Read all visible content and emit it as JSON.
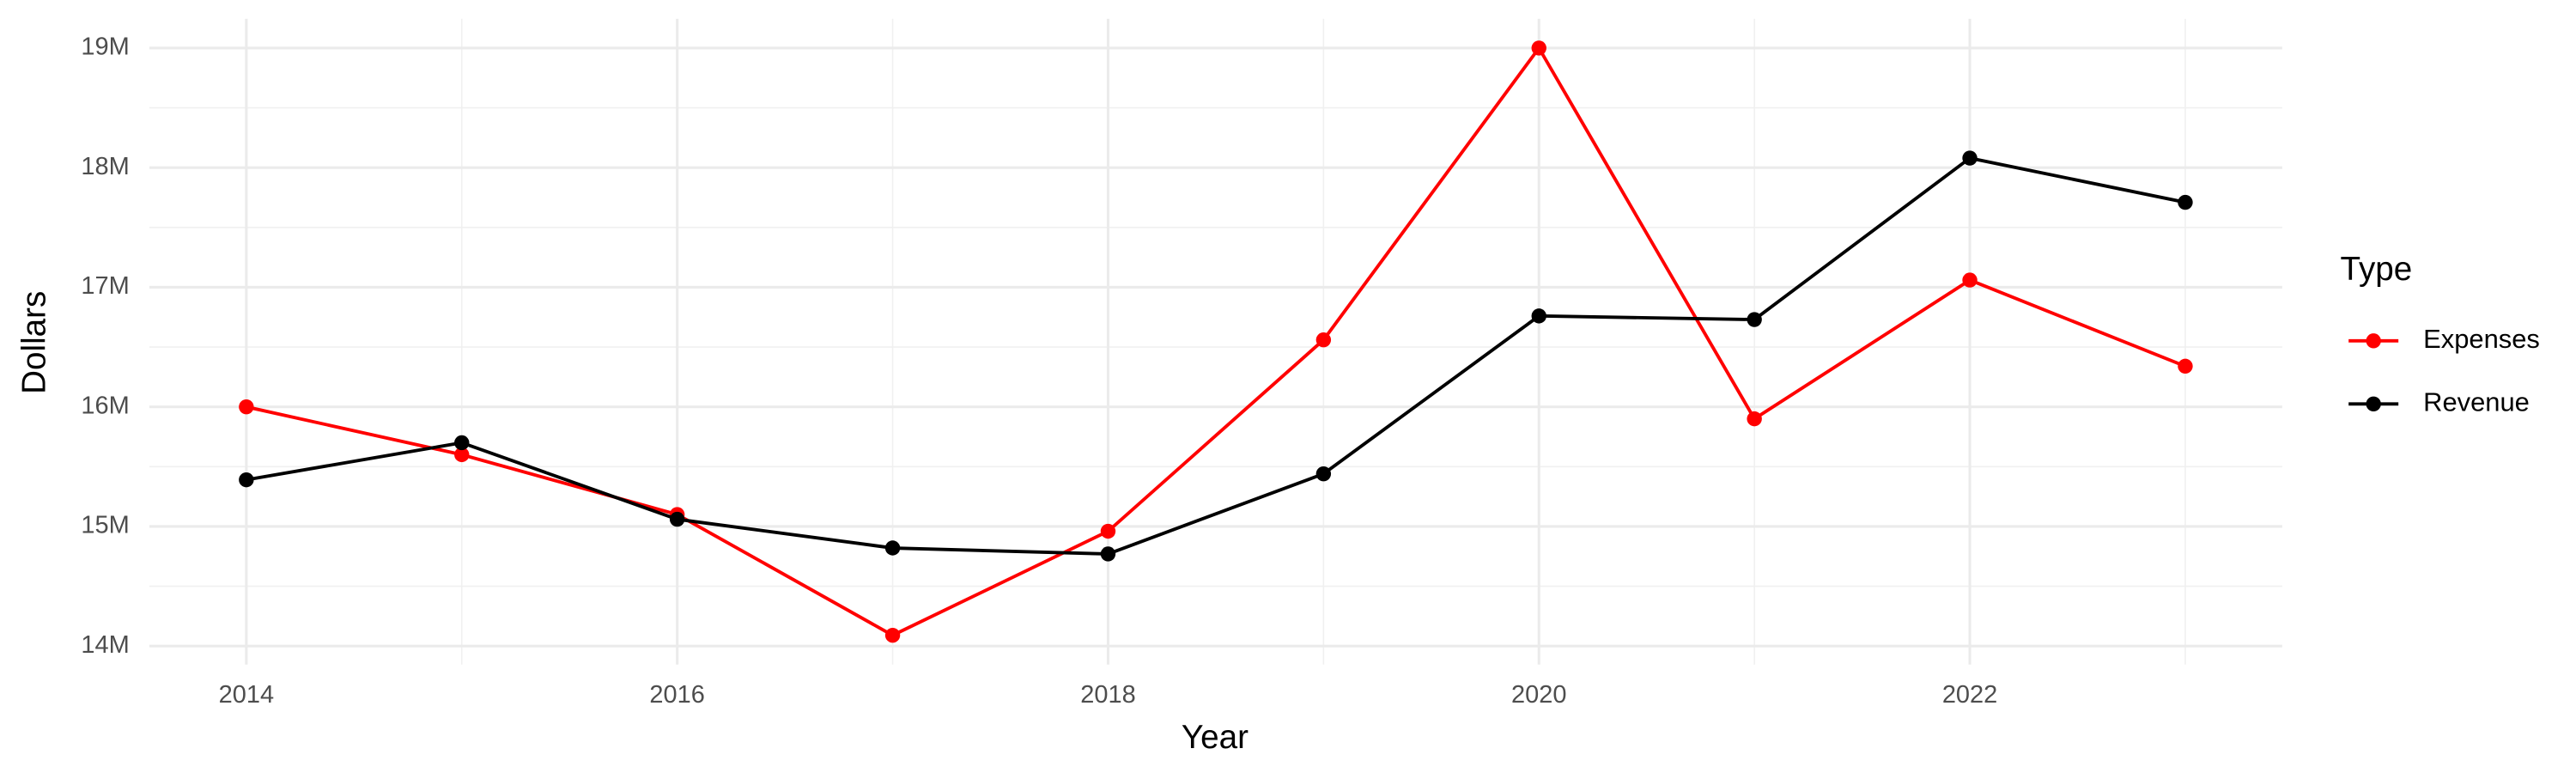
{
  "chart_data": {
    "type": "line",
    "x_label": "Year",
    "y_label": "Dollars",
    "legend_title": "Type",
    "legend": "right",
    "grid": true,
    "x": [
      2014,
      2015,
      2016,
      2017,
      2018,
      2019,
      2020,
      2021,
      2022,
      2023
    ],
    "series": [
      {
        "name": "Expenses",
        "color": "#ff0000",
        "values": [
          16000000,
          15600000,
          15100000,
          14090000,
          14960000,
          16560000,
          19000000,
          15900000,
          17060000,
          16340000
        ]
      },
      {
        "name": "Revenue",
        "color": "#000000",
        "values": [
          15390000,
          15700000,
          15060000,
          14820000,
          14770000,
          15440000,
          16760000,
          16730000,
          18080000,
          17710000
        ]
      }
    ],
    "xlim": [
      2013.55,
      2023.45
    ],
    "xticks": [
      2014,
      2016,
      2018,
      2020,
      2022
    ],
    "ylim": [
      13845000,
      19245000
    ],
    "yticks": [
      {
        "value": 14000000,
        "label": "14M"
      },
      {
        "value": 15000000,
        "label": "15M"
      },
      {
        "value": 16000000,
        "label": "16M"
      },
      {
        "value": 17000000,
        "label": "17M"
      },
      {
        "value": 18000000,
        "label": "18M"
      },
      {
        "value": 19000000,
        "label": "19M"
      }
    ]
  }
}
